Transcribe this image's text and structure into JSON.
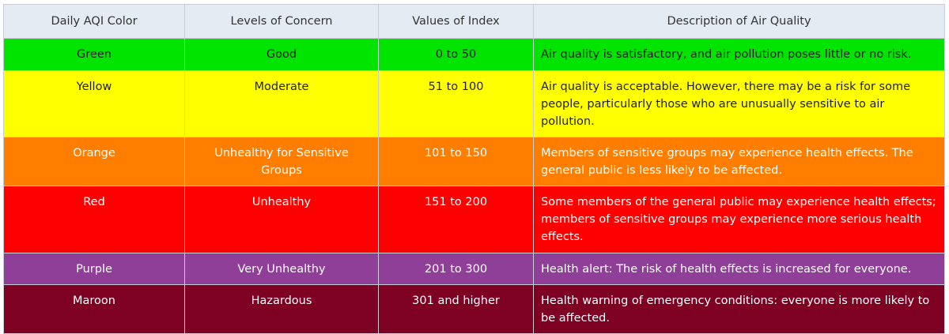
{
  "table": {
    "headers": [
      "Daily AQI Color",
      "Levels of Concern",
      "Values of Index",
      "Description of Air Quality"
    ],
    "rows": [
      {
        "color_name": "Green",
        "level": "Good",
        "values": "0 to 50",
        "description": "Air quality is satisfactory, and air pollution poses little or no risk.",
        "bg": "#00e400",
        "fg": "#1f1f1f"
      },
      {
        "color_name": "Yellow",
        "level": "Moderate",
        "values": "51 to 100",
        "description": "Air quality is acceptable. However, there may be a risk for some people, particularly those who are unusually sensitive to air pollution.",
        "bg": "#ffff00",
        "fg": "#1f1f1f"
      },
      {
        "color_name": "Orange",
        "level": "Unhealthy for Sensitive Groups",
        "values": "101 to 150",
        "description": "Members of sensitive groups may experience health effects. The general public is less likely to be affected.",
        "bg": "#ff7e00",
        "fg": "#ffffff"
      },
      {
        "color_name": "Red",
        "level": "Unhealthy",
        "values": "151 to 200",
        "description": "Some members of the general public may experience health effects; members of sensitive groups may experience more serious health effects.",
        "bg": "#ff0000",
        "fg": "#ffffff"
      },
      {
        "color_name": "Purple",
        "level": "Very Unhealthy",
        "values": "201 to 300",
        "description": "Health alert: The risk of health effects is increased for everyone.",
        "bg": "#8f3f97",
        "fg": "#ffffff"
      },
      {
        "color_name": "Maroon",
        "level": "Hazardous",
        "values": "301 and higher",
        "description": "Health warning of emergency conditions: everyone is more likely to be affected.",
        "bg": "#7e0023",
        "fg": "#ffffff"
      }
    ]
  }
}
